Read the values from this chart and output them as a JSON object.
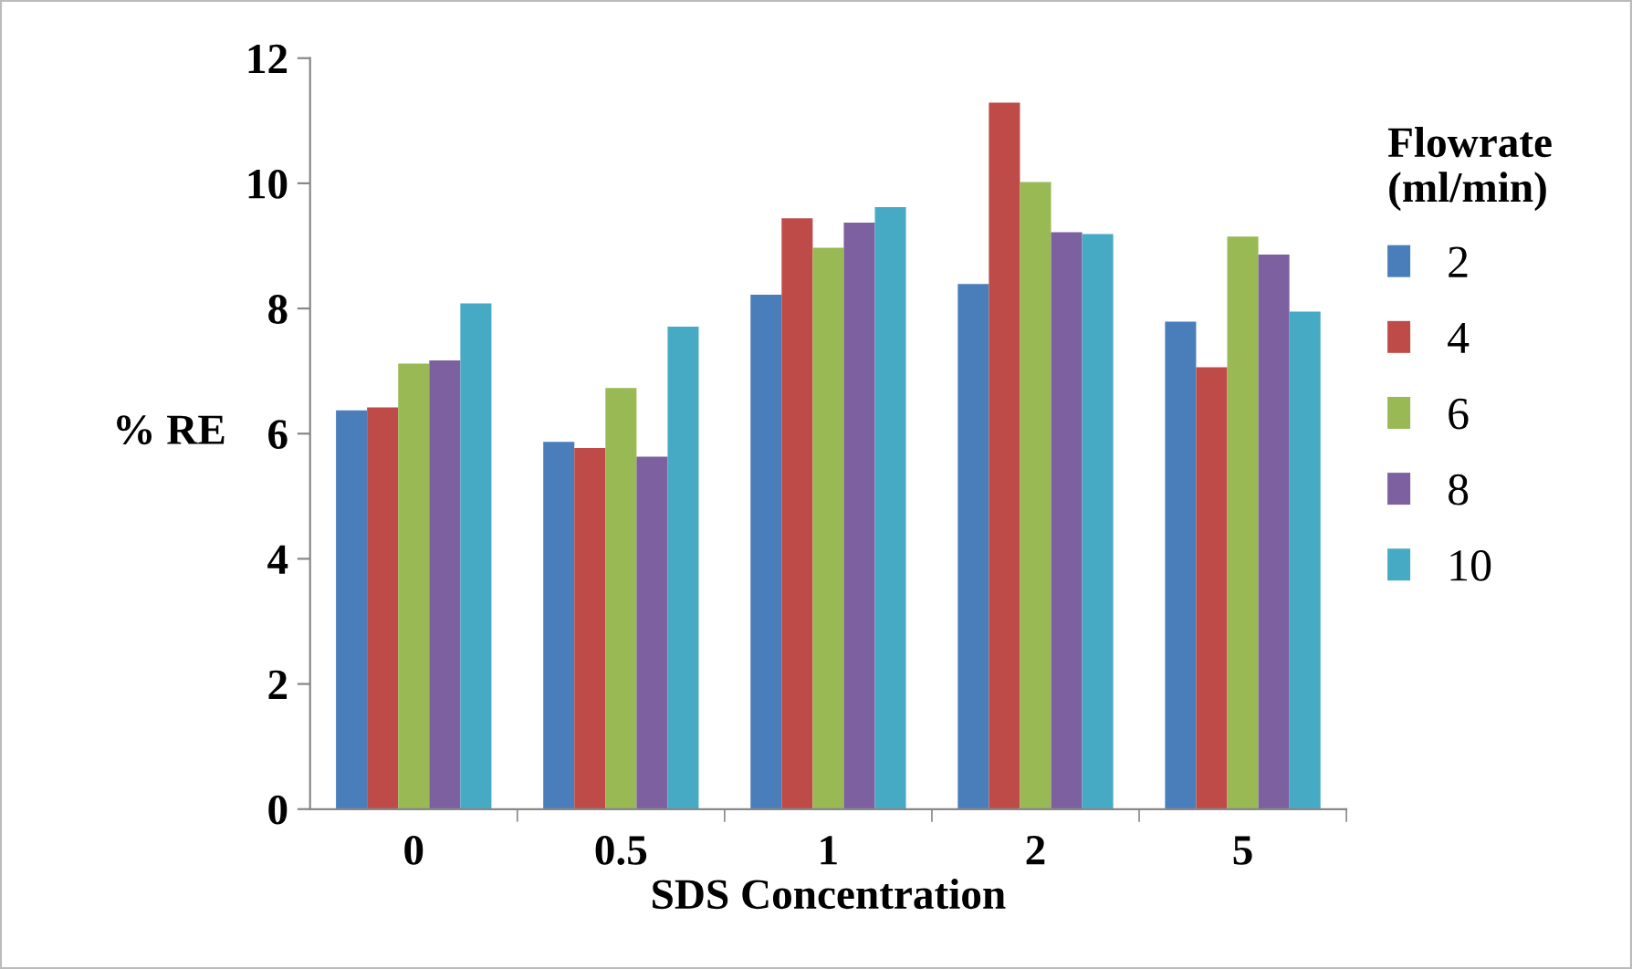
{
  "chart_data": {
    "type": "bar",
    "xlabel": "SDS Concentration",
    "ylabel": "% RE",
    "legend_title": "Flowrate\n(ml/min)",
    "legend": "right",
    "grid": false,
    "categories": [
      "0",
      "0.5",
      "1",
      "2",
      "5"
    ],
    "ylim": [
      0,
      12
    ],
    "yticks": [
      0,
      2,
      4,
      6,
      8,
      10,
      12
    ],
    "series": [
      {
        "name": "2",
        "color": "#4a7ebb",
        "values": [
          6.37,
          5.87,
          8.22,
          8.39,
          7.79
        ]
      },
      {
        "name": "4",
        "color": "#be4b48",
        "values": [
          6.42,
          5.77,
          9.44,
          11.29,
          7.06
        ]
      },
      {
        "name": "6",
        "color": "#98b954",
        "values": [
          7.12,
          6.73,
          8.97,
          10.02,
          9.15
        ]
      },
      {
        "name": "8",
        "color": "#7d60a0",
        "values": [
          7.17,
          5.63,
          9.37,
          9.22,
          8.86
        ]
      },
      {
        "name": "10",
        "color": "#46aac5",
        "values": [
          8.08,
          7.71,
          9.62,
          9.19,
          7.95
        ]
      }
    ]
  }
}
